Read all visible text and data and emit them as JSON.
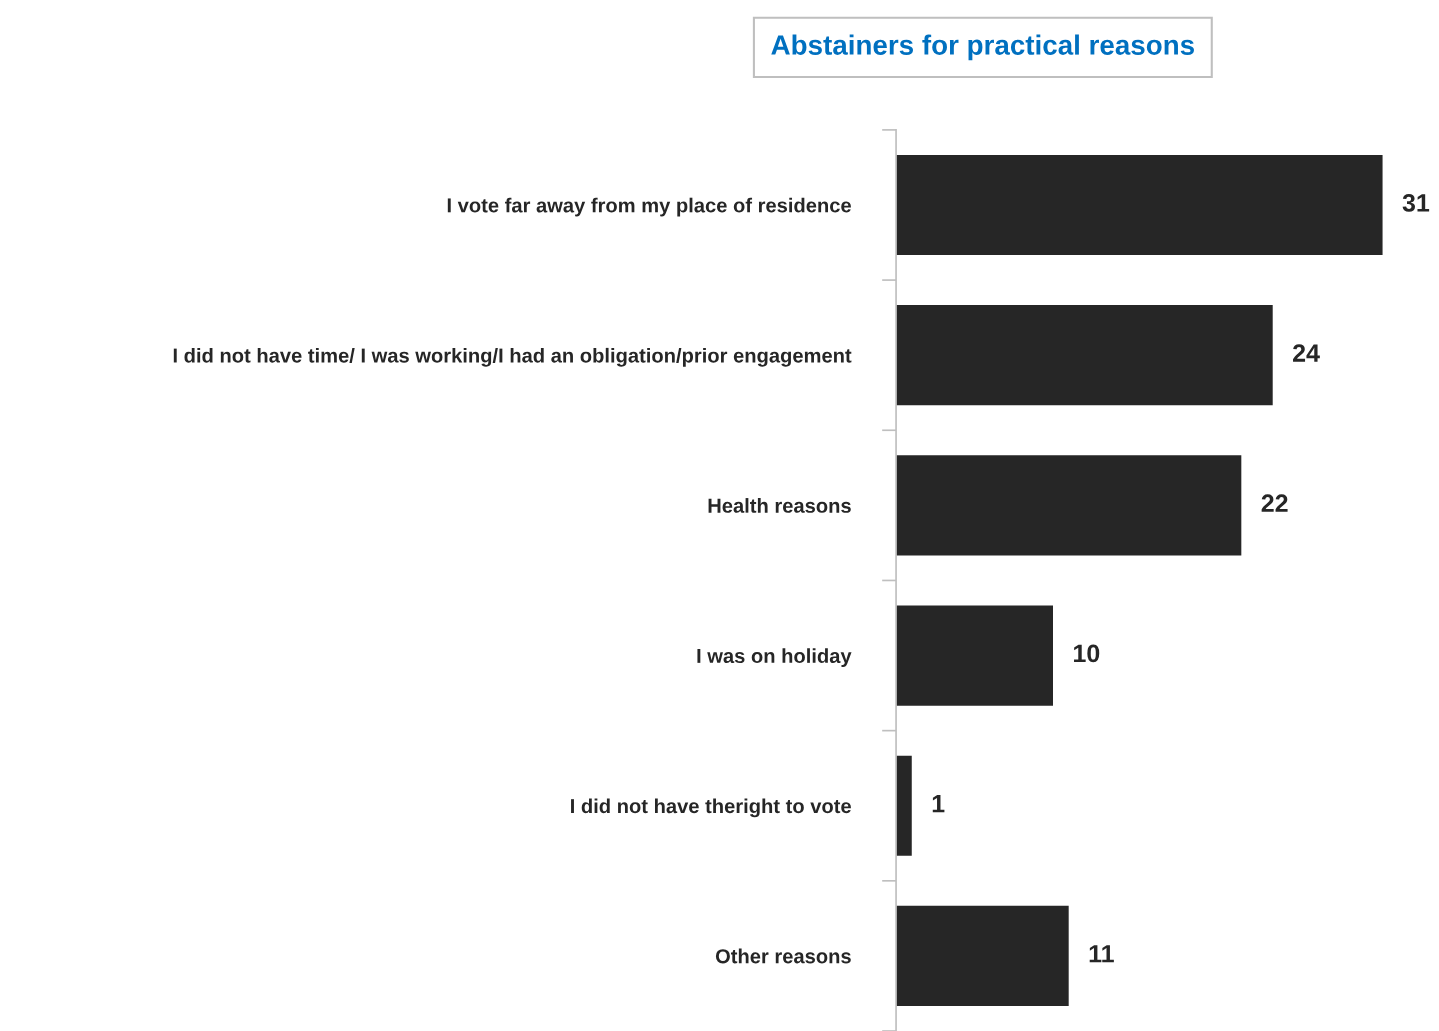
{
  "chart_data": {
    "type": "bar",
    "orientation": "horizontal",
    "title": "Abstainers for practical reasons",
    "categories": [
      "I vote far away from my place of residence",
      "I did not have time/ I was working/I had an obligation/prior engagement",
      "Health reasons",
      "I was on holiday",
      "I did not have theright to vote",
      "Other reasons"
    ],
    "values": [
      31,
      24,
      22,
      10,
      1,
      11
    ],
    "color": "#262626",
    "data_labels": true,
    "grid": false,
    "legend": false
  }
}
